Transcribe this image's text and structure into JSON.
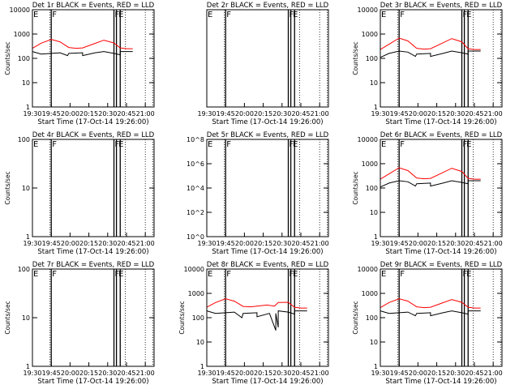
{
  "window_title": "",
  "colors": {
    "events": "#000000",
    "lld": "#ff0000",
    "background": "#ffffff",
    "axis": "#000000"
  },
  "chart_data": [
    {
      "type": "line",
      "title": "Det 1r BLACK = Events, RED = LLD",
      "xlabel": "Start Time (17-Oct-14 19:26:00)",
      "ylabel": "Counts/sec",
      "xlim": [
        "19:30",
        "21:07"
      ],
      "x_ticks": [
        "19:30",
        "19:45",
        "20:00",
        "20:15",
        "20:30",
        "20:45",
        "21:00"
      ],
      "y_scale": "log",
      "ylim": [
        1,
        10000
      ],
      "y_ticks": [
        "1",
        "10",
        "100",
        "1000",
        "10000"
      ],
      "annotations": [
        {
          "text": "E",
          "x": "19:30"
        },
        {
          "text": "F",
          "x": "19:45"
        },
        {
          "text": "F",
          "x": "20:35"
        },
        {
          "text": "E",
          "x": "20:38"
        }
      ],
      "series": [
        {
          "name": "Events",
          "color": "#000000",
          "x": [
            "19:30",
            "19:37",
            "19:45",
            "19:52",
            "19:58",
            "19:59",
            "20:10",
            "20:10",
            "20:20",
            "20:27",
            "20:35",
            "20:40",
            "20:40",
            "20:45",
            "20:50"
          ],
          "values": [
            190,
            150,
            160,
            170,
            130,
            160,
            170,
            130,
            170,
            190,
            160,
            140,
            190,
            190,
            190
          ]
        },
        {
          "name": "LLD",
          "color": "#ff0000",
          "x": [
            "19:30",
            "19:37",
            "19:45",
            "19:52",
            "19:59",
            "20:05",
            "20:10",
            "20:18",
            "20:27",
            "20:35",
            "20:40",
            "20:45",
            "20:50"
          ],
          "values": [
            260,
            420,
            600,
            480,
            280,
            260,
            270,
            380,
            560,
            430,
            270,
            250,
            250
          ]
        }
      ]
    },
    {
      "type": "line",
      "title": "Det 2r BLACK = Events, RED = LLD",
      "xlabel": "Start Time (17-Oct-14 19:26:00)",
      "ylabel": "",
      "xlim": [
        "19:30",
        "21:07"
      ],
      "x_ticks": [
        "19:30",
        "19:45",
        "20:00",
        "20:15",
        "20:30",
        "20:45",
        "21:00"
      ],
      "y_scale": "log",
      "ylim": [
        1,
        100
      ],
      "y_ticks": [],
      "annotations": [
        {
          "text": "E",
          "x": "19:30"
        },
        {
          "text": "F",
          "x": "19:45"
        },
        {
          "text": "F",
          "x": "20:35"
        },
        {
          "text": "E",
          "x": "20:38"
        }
      ],
      "series": []
    },
    {
      "type": "line",
      "title": "Det 3r BLACK = Events, RED = LLD",
      "xlabel": "Start Time (17-Oct-14 19:26:00)",
      "ylabel": "Counts/sec",
      "xlim": [
        "19:30",
        "21:07"
      ],
      "x_ticks": [
        "19:30",
        "19:45",
        "20:00",
        "20:15",
        "20:30",
        "20:45",
        "21:00"
      ],
      "y_scale": "log",
      "ylim": [
        1,
        10000
      ],
      "y_ticks": [
        "1",
        "10",
        "100",
        "1000",
        "10000"
      ],
      "annotations": [
        {
          "text": "E",
          "x": "19:30"
        },
        {
          "text": "F",
          "x": "19:45"
        },
        {
          "text": "F",
          "x": "20:35"
        },
        {
          "text": "E",
          "x": "20:38"
        }
      ],
      "series": [
        {
          "name": "Events",
          "color": "#000000",
          "x": [
            "19:30",
            "19:37",
            "19:45",
            "19:52",
            "19:58",
            "19:59",
            "20:10",
            "20:10",
            "20:20",
            "20:27",
            "20:35",
            "20:40",
            "20:40",
            "20:45",
            "20:50"
          ],
          "values": [
            110,
            160,
            200,
            180,
            120,
            150,
            160,
            120,
            160,
            200,
            170,
            150,
            200,
            200,
            200
          ]
        },
        {
          "name": "LLD",
          "color": "#ff0000",
          "x": [
            "19:30",
            "19:37",
            "19:45",
            "19:52",
            "19:59",
            "20:05",
            "20:10",
            "20:18",
            "20:27",
            "20:35",
            "20:40",
            "20:45",
            "20:50"
          ],
          "values": [
            230,
            380,
            680,
            520,
            260,
            240,
            250,
            390,
            650,
            480,
            250,
            230,
            230
          ]
        }
      ]
    },
    {
      "type": "line",
      "title": "Det 4r BLACK = Events, RED = LLD",
      "xlabel": "Start Time (17-Oct-14 19:26:00)",
      "ylabel": "Counts/sec",
      "xlim": [
        "19:30",
        "21:07"
      ],
      "x_ticks": [
        "19:30",
        "19:45",
        "20:00",
        "20:15",
        "20:30",
        "20:45",
        "21:00"
      ],
      "y_scale": "log",
      "ylim": [
        1,
        100
      ],
      "y_ticks": [
        "1",
        "10",
        "100"
      ],
      "annotations": [
        {
          "text": "E",
          "x": "19:30"
        },
        {
          "text": "F",
          "x": "19:45"
        },
        {
          "text": "F",
          "x": "20:35"
        },
        {
          "text": "E",
          "x": "20:38"
        }
      ],
      "series": []
    },
    {
      "type": "line",
      "title": "Det 5r BLACK = Events, RED = LLD",
      "xlabel": "Start Time (17-Oct-14 19:26:00)",
      "ylabel": "",
      "xlim": [
        "19:30",
        "21:07"
      ],
      "x_ticks": [
        "19:30",
        "19:45",
        "20:00",
        "20:15",
        "20:30",
        "20:45",
        "21:00"
      ],
      "y_scale": "log",
      "ylim": [
        1,
        100000000.0
      ],
      "y_ticks": [
        "10^0",
        "10^2",
        "10^4",
        "10^6",
        "10^8"
      ],
      "annotations": [
        {
          "text": "E",
          "x": "19:30"
        },
        {
          "text": "F",
          "x": "19:45"
        },
        {
          "text": "F",
          "x": "20:35"
        },
        {
          "text": "E",
          "x": "20:38"
        }
      ],
      "series": []
    },
    {
      "type": "line",
      "title": "Det 6r BLACK = Events, RED = LLD",
      "xlabel": "Start Time (17-Oct-14 19:26:00)",
      "ylabel": "Counts/sec",
      "xlim": [
        "19:30",
        "21:07"
      ],
      "x_ticks": [
        "19:30",
        "19:45",
        "20:00",
        "20:15",
        "20:30",
        "20:45",
        "21:00"
      ],
      "y_scale": "log",
      "ylim": [
        1,
        10000
      ],
      "y_ticks": [
        "1",
        "10",
        "100",
        "1000",
        "10000"
      ],
      "annotations": [
        {
          "text": "E",
          "x": "19:30"
        },
        {
          "text": "F",
          "x": "19:45"
        },
        {
          "text": "F",
          "x": "20:35"
        },
        {
          "text": "E",
          "x": "20:38"
        }
      ],
      "series": [
        {
          "name": "Events",
          "color": "#000000",
          "x": [
            "19:30",
            "19:37",
            "19:45",
            "19:52",
            "19:58",
            "19:59",
            "20:10",
            "20:10",
            "20:20",
            "20:27",
            "20:35",
            "20:40",
            "20:40",
            "20:45",
            "20:50"
          ],
          "values": [
            110,
            160,
            200,
            180,
            120,
            150,
            160,
            120,
            160,
            200,
            170,
            150,
            200,
            200,
            200
          ]
        },
        {
          "name": "LLD",
          "color": "#ff0000",
          "x": [
            "19:30",
            "19:37",
            "19:45",
            "19:52",
            "19:59",
            "20:05",
            "20:10",
            "20:18",
            "20:27",
            "20:35",
            "20:40",
            "20:45",
            "20:50"
          ],
          "values": [
            230,
            380,
            680,
            520,
            260,
            240,
            250,
            390,
            650,
            480,
            250,
            230,
            230
          ]
        }
      ]
    },
    {
      "type": "line",
      "title": "Det 7r BLACK = Events, RED = LLD",
      "xlabel": "Start Time (17-Oct-14 19:26:00)",
      "ylabel": "Counts/sec",
      "xlim": [
        "19:30",
        "21:07"
      ],
      "x_ticks": [
        "19:30",
        "19:45",
        "20:00",
        "20:15",
        "20:30",
        "20:45",
        "21:00"
      ],
      "y_scale": "log",
      "ylim": [
        1,
        100
      ],
      "y_ticks": [
        "1",
        "10",
        "100"
      ],
      "annotations": [
        {
          "text": "E",
          "x": "19:30"
        },
        {
          "text": "F",
          "x": "19:45"
        },
        {
          "text": "F",
          "x": "20:35"
        },
        {
          "text": "E",
          "x": "20:38"
        }
      ],
      "series": []
    },
    {
      "type": "line",
      "title": "Det 8r BLACK = Events, RED = LLD",
      "xlabel": "Start Time (17-Oct-14 19:26:00)",
      "ylabel": "Counts/sec",
      "xlim": [
        "19:30",
        "21:07"
      ],
      "x_ticks": [
        "19:30",
        "19:45",
        "20:00",
        "20:15",
        "20:30",
        "20:45",
        "21:00"
      ],
      "y_scale": "log",
      "ylim": [
        1,
        10000
      ],
      "y_ticks": [
        "1",
        "10",
        "100",
        "1000",
        "10000"
      ],
      "annotations": [
        {
          "text": "E",
          "x": "19:30"
        },
        {
          "text": "F",
          "x": "19:45"
        },
        {
          "text": "F",
          "x": "20:35"
        },
        {
          "text": "E",
          "x": "20:38"
        }
      ],
      "series": [
        {
          "name": "Events",
          "color": "#000000",
          "x": [
            "19:30",
            "19:37",
            "19:45",
            "19:52",
            "19:58",
            "19:59",
            "20:10",
            "20:10",
            "20:20",
            "20:25",
            "20:25",
            "20:27",
            "20:27",
            "20:35",
            "20:40",
            "20:40",
            "20:45",
            "20:50"
          ],
          "values": [
            190,
            150,
            160,
            170,
            100,
            150,
            160,
            110,
            150,
            30,
            150,
            40,
            190,
            170,
            140,
            190,
            190,
            190
          ]
        },
        {
          "name": "LLD",
          "color": "#ff0000",
          "x": [
            "19:30",
            "19:37",
            "19:45",
            "19:52",
            "19:59",
            "20:05",
            "20:10",
            "20:18",
            "20:24",
            "20:27",
            "20:35",
            "20:40",
            "20:45",
            "20:50"
          ],
          "values": [
            270,
            420,
            600,
            480,
            290,
            280,
            300,
            330,
            300,
            420,
            430,
            270,
            250,
            250
          ]
        }
      ]
    },
    {
      "type": "line",
      "title": "Det 9r BLACK = Events, RED = LLD",
      "xlabel": "Start Time (17-Oct-14 19:26:00)",
      "ylabel": "Counts/sec",
      "xlim": [
        "19:30",
        "21:07"
      ],
      "x_ticks": [
        "19:30",
        "19:45",
        "20:00",
        "20:15",
        "20:30",
        "20:45",
        "21:00"
      ],
      "y_scale": "log",
      "ylim": [
        1,
        10000
      ],
      "y_ticks": [
        "1",
        "10",
        "100",
        "1000",
        "10000"
      ],
      "annotations": [
        {
          "text": "E",
          "x": "19:30"
        },
        {
          "text": "F",
          "x": "19:45"
        },
        {
          "text": "F",
          "x": "20:35"
        },
        {
          "text": "E",
          "x": "20:38"
        }
      ],
      "series": [
        {
          "name": "Events",
          "color": "#000000",
          "x": [
            "19:30",
            "19:37",
            "19:45",
            "19:52",
            "19:58",
            "19:59",
            "20:10",
            "20:10",
            "20:20",
            "20:27",
            "20:35",
            "20:40",
            "20:40",
            "20:45",
            "20:50"
          ],
          "values": [
            190,
            150,
            160,
            170,
            120,
            150,
            160,
            120,
            160,
            190,
            160,
            140,
            190,
            190,
            190
          ]
        },
        {
          "name": "LLD",
          "color": "#ff0000",
          "x": [
            "19:30",
            "19:37",
            "19:45",
            "19:52",
            "19:59",
            "20:05",
            "20:10",
            "20:18",
            "20:27",
            "20:35",
            "20:40",
            "20:45",
            "20:50"
          ],
          "values": [
            260,
            420,
            600,
            480,
            280,
            260,
            270,
            380,
            560,
            430,
            270,
            250,
            250
          ]
        }
      ]
    }
  ]
}
